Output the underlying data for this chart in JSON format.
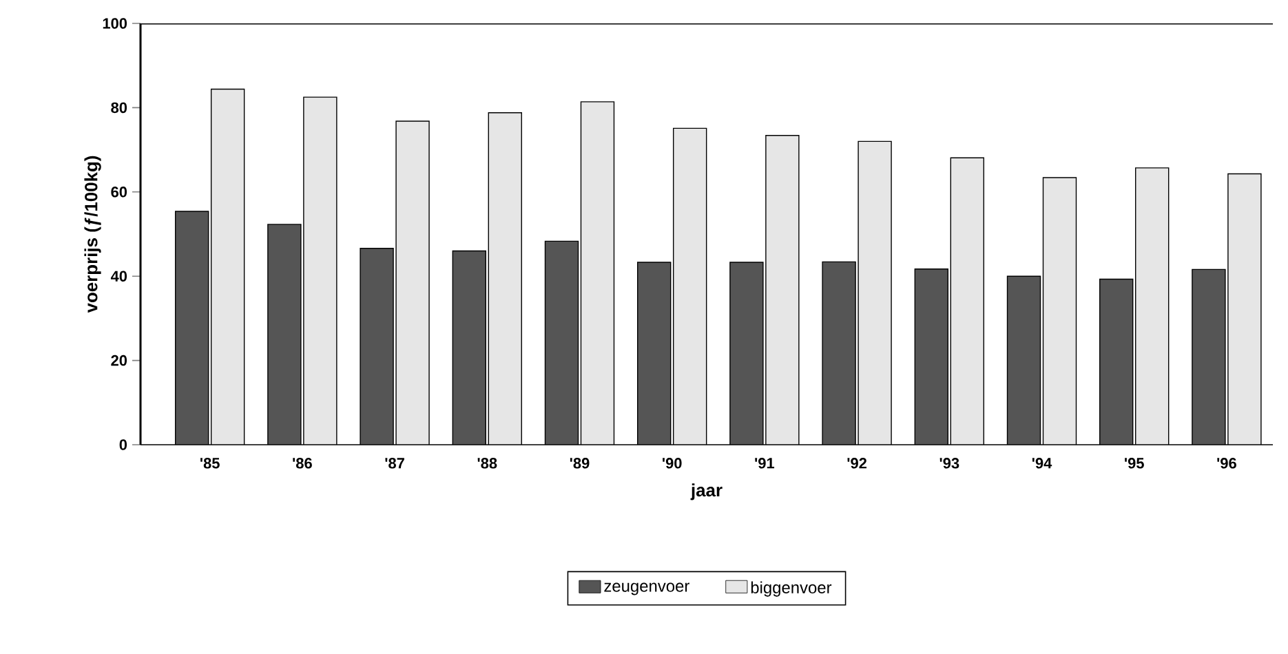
{
  "chart_data": {
    "type": "bar",
    "xlabel": "jaar",
    "ylabel": "voerprijs (ƒ/100kg)",
    "categories": [
      "'85",
      "'86",
      "'87",
      "'88",
      "'89",
      "'90",
      "'91",
      "'92",
      "'93",
      "'94",
      "'95",
      "'96"
    ],
    "series": [
      {
        "name": "zeugenvoer",
        "color": "#555555",
        "values": [
          55.4,
          52.3,
          46.6,
          46.0,
          48.3,
          43.3,
          43.3,
          43.4,
          41.7,
          40.0,
          39.3,
          41.6
        ]
      },
      {
        "name": "biggenvoer",
        "color": "#e6e6e6",
        "values": [
          84.4,
          82.5,
          76.8,
          78.8,
          81.4,
          75.1,
          73.4,
          72.0,
          68.1,
          63.4,
          65.7,
          64.3
        ]
      }
    ],
    "ylim": [
      0,
      100
    ],
    "yticks": [
      0,
      20,
      40,
      60,
      80,
      100
    ],
    "grid": false,
    "legend": "bottom"
  }
}
